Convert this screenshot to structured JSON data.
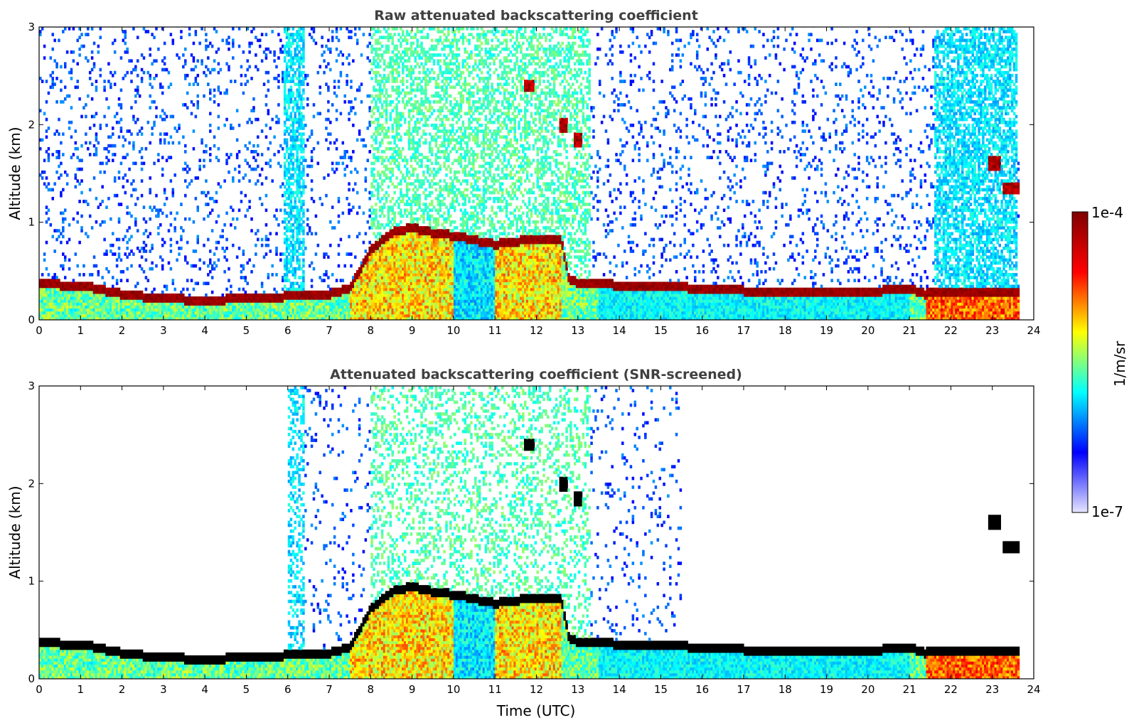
{
  "chart_data": [
    {
      "type": "heatmap",
      "title": "Raw attenuated backscattering coefficient",
      "xlabel": "",
      "ylabel": "Altitude (km)",
      "xlim": [
        0,
        24
      ],
      "ylim": [
        0,
        3
      ],
      "xticks": [
        "0",
        "1",
        "2",
        "3",
        "4",
        "5",
        "6",
        "7",
        "8",
        "9",
        "10",
        "11",
        "12",
        "13",
        "14",
        "15",
        "16",
        "17",
        "18",
        "19",
        "20",
        "21",
        "22",
        "23",
        "24"
      ],
      "yticks": [
        "0",
        "1",
        "2",
        "3"
      ],
      "data_end_time": 23.65,
      "boundary_layer_top_km": [
        [
          0,
          0.37
        ],
        [
          1,
          0.36
        ],
        [
          2,
          0.27
        ],
        [
          3,
          0.22
        ],
        [
          4,
          0.21
        ],
        [
          5,
          0.22
        ],
        [
          5.8,
          0.24
        ],
        [
          6.5,
          0.27
        ],
        [
          7,
          0.27
        ],
        [
          7.5,
          0.33
        ],
        [
          8,
          0.72
        ],
        [
          8.5,
          0.9
        ],
        [
          9,
          0.95
        ],
        [
          9.5,
          0.9
        ],
        [
          10,
          0.87
        ],
        [
          11,
          0.78
        ],
        [
          12,
          0.84
        ],
        [
          12.6,
          0.82
        ],
        [
          12.8,
          0.4
        ],
        [
          14,
          0.36
        ],
        [
          16,
          0.33
        ],
        [
          18,
          0.28
        ],
        [
          20,
          0.29
        ],
        [
          21,
          0.33
        ],
        [
          21.4,
          0.27
        ]
      ],
      "elevated_layers": [
        {
          "t_start": 11.7,
          "t_end": 11.95,
          "altitude_km": 2.4
        },
        {
          "t_start": 12.55,
          "t_end": 12.75,
          "altitude_km": 2.0
        },
        {
          "t_start": 12.9,
          "t_end": 13.1,
          "altitude_km": 1.85
        },
        {
          "t_start": 22.9,
          "t_end": 23.2,
          "altitude_km": 1.6
        },
        {
          "t_start": 23.25,
          "t_end": 23.65,
          "altitude_km": 1.35
        }
      ],
      "background_noise_level": "scattered low values 0–3 km"
    },
    {
      "type": "heatmap",
      "title": "Attenuated backscattering coefficient (SNR-screened)",
      "xlabel": "Time (UTC)",
      "ylabel": "Altitude (km)",
      "xlim": [
        0,
        24
      ],
      "ylim": [
        0,
        3
      ],
      "xticks": [
        "0",
        "1",
        "2",
        "3",
        "4",
        "5",
        "6",
        "7",
        "8",
        "9",
        "10",
        "11",
        "12",
        "13",
        "14",
        "15",
        "16",
        "17",
        "18",
        "19",
        "20",
        "21",
        "22",
        "23",
        "24"
      ],
      "yticks": [
        "0",
        "1",
        "2",
        "3"
      ],
      "data_end_time": 23.65,
      "screened_region": "noise removed; cloud/BL peak values shown in black",
      "residual_noise_time_range": [
        6.0,
        15.5
      ]
    }
  ],
  "colorbar": {
    "max_label": "1e-4",
    "min_label": "1e-7",
    "unit_label": "1/m/sr",
    "colormap": "jet",
    "colors": [
      "#e6e6ff",
      "#0000ff",
      "#00ffff",
      "#ffff00",
      "#ff0000",
      "#800000"
    ]
  }
}
